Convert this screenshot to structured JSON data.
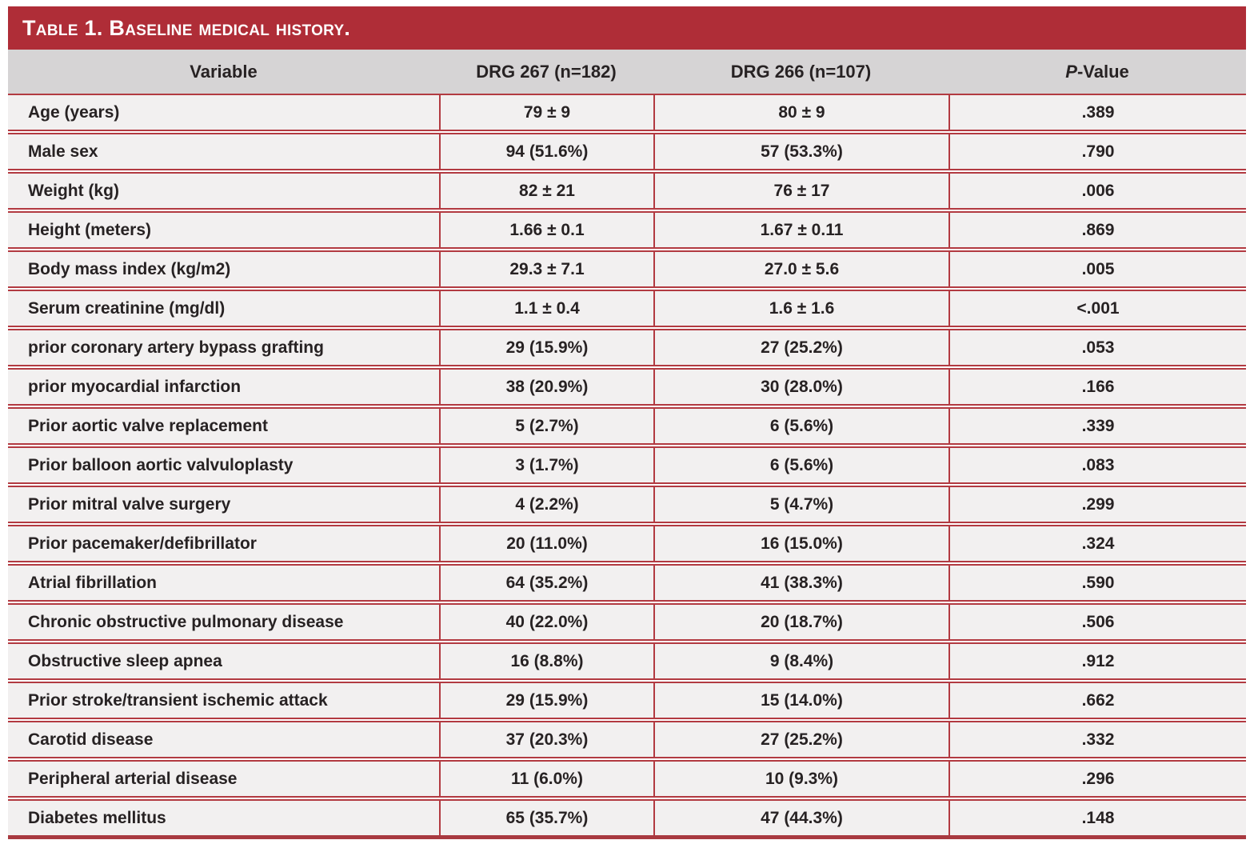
{
  "table": {
    "title": "Table 1. Baseline medical history.",
    "columns": {
      "variable": "Variable",
      "drg267": "DRG 267 (n=182)",
      "drg266": "DRG 266 (n=107)",
      "pvalue_italic": "P",
      "pvalue_rest": "-Value"
    },
    "rows": [
      {
        "variable": "Age (years)",
        "drg267": "79 ± 9",
        "drg266": "80 ± 9",
        "p": ".389"
      },
      {
        "variable": "Male sex",
        "drg267": "94 (51.6%)",
        "drg266": "57 (53.3%)",
        "p": ".790"
      },
      {
        "variable": "Weight (kg)",
        "drg267": "82 ± 21",
        "drg266": "76 ± 17",
        "p": ".006"
      },
      {
        "variable": "Height (meters)",
        "drg267": "1.66 ± 0.1",
        "drg266": "1.67 ± 0.11",
        "p": ".869"
      },
      {
        "variable": "Body mass index (kg/m2)",
        "drg267": "29.3 ± 7.1",
        "drg266": "27.0 ± 5.6",
        "p": ".005"
      },
      {
        "variable": "Serum creatinine (mg/dl)",
        "drg267": "1.1 ± 0.4",
        "drg266": "1.6 ± 1.6",
        "p": "<.001"
      },
      {
        "variable": "prior coronary artery bypass grafting",
        "drg267": "29 (15.9%)",
        "drg266": "27 (25.2%)",
        "p": ".053"
      },
      {
        "variable": "prior myocardial infarction",
        "drg267": "38 (20.9%)",
        "drg266": "30 (28.0%)",
        "p": ".166"
      },
      {
        "variable": "Prior aortic valve replacement",
        "drg267": "5 (2.7%)",
        "drg266": "6 (5.6%)",
        "p": ".339"
      },
      {
        "variable": "Prior balloon aortic valvuloplasty",
        "drg267": "3 (1.7%)",
        "drg266": "6 (5.6%)",
        "p": ".083"
      },
      {
        "variable": "Prior mitral valve surgery",
        "drg267": "4 (2.2%)",
        "drg266": "5 (4.7%)",
        "p": ".299"
      },
      {
        "variable": "Prior pacemaker/defibrillator",
        "drg267": "20 (11.0%)",
        "drg266": "16 (15.0%)",
        "p": ".324"
      },
      {
        "variable": "Atrial fibrillation",
        "drg267": "64 (35.2%)",
        "drg266": "41 (38.3%)",
        "p": ".590"
      },
      {
        "variable": "Chronic obstructive pulmonary disease",
        "drg267": "40 (22.0%)",
        "drg266": "20 (18.7%)",
        "p": ".506"
      },
      {
        "variable": "Obstructive sleep apnea",
        "drg267": "16 (8.8%)",
        "drg266": "9 (8.4%)",
        "p": ".912"
      },
      {
        "variable": "Prior stroke/transient ischemic attack",
        "drg267": "29 (15.9%)",
        "drg266": "15 (14.0%)",
        "p": ".662"
      },
      {
        "variable": "Carotid disease",
        "drg267": "37 (20.3%)",
        "drg266": "27 (25.2%)",
        "p": ".332"
      },
      {
        "variable": "Peripheral arterial disease",
        "drg267": "11 (6.0%)",
        "drg266": "10 (9.3%)",
        "p": ".296"
      },
      {
        "variable": "Diabetes mellitus",
        "drg267": "65 (35.7%)",
        "drg266": "47 (44.3%)",
        "p": ".148"
      }
    ],
    "colors": {
      "title_bar": "#AF2D37",
      "grid_line": "#B23A41",
      "bottom_bar": "#A83A40",
      "header_bg": "#D6D4D5",
      "row_bg": "#F2F0F0",
      "text": "#272223",
      "title_text": "#FFFFFF"
    }
  }
}
